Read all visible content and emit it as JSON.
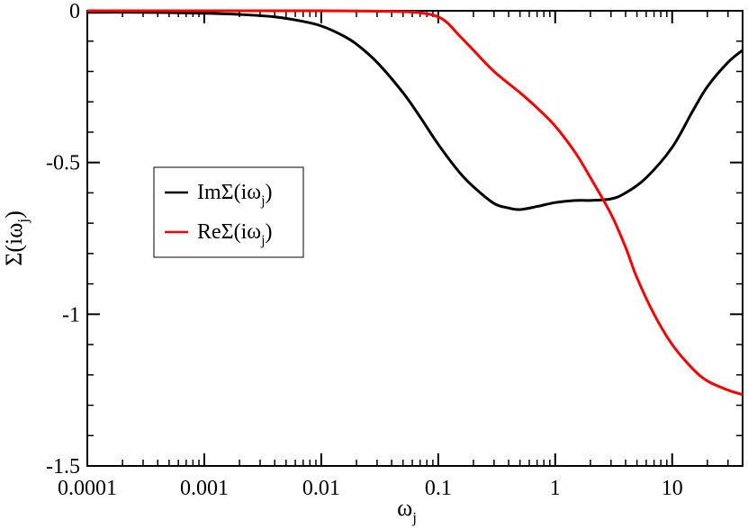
{
  "chart_data": {
    "type": "line",
    "title": "",
    "xlabel": "ω",
    "xlabel_sub": "j",
    "ylabel": "Σ(iω",
    "ylabel_sub": "j",
    "ylabel_tail": ")",
    "xscale": "log",
    "xlim": [
      0.0001,
      40
    ],
    "ylim": [
      -1.5,
      0
    ],
    "xticks": [
      {
        "value": 0.0001,
        "label": "0.0001"
      },
      {
        "value": 0.001,
        "label": "0.001"
      },
      {
        "value": 0.01,
        "label": "0.01"
      },
      {
        "value": 0.1,
        "label": "0.1"
      },
      {
        "value": 1,
        "label": "1"
      },
      {
        "value": 10,
        "label": "10"
      }
    ],
    "yticks": [
      {
        "value": 0,
        "label": "0"
      },
      {
        "value": -0.5,
        "label": "-0.5"
      },
      {
        "value": -1,
        "label": "-1"
      },
      {
        "value": -1.5,
        "label": "-1.5"
      }
    ],
    "grid": false,
    "legend_position": "middle-left",
    "series": [
      {
        "name": "ImΣ(iω",
        "name_sub": "j",
        "name_tail": ")",
        "color": "#000000",
        "x": [
          0.0001,
          0.0003,
          0.001,
          0.002,
          0.004,
          0.007,
          0.01,
          0.015,
          0.02,
          0.03,
          0.05,
          0.07,
          0.1,
          0.15,
          0.2,
          0.3,
          0.4,
          0.5,
          0.7,
          1,
          1.5,
          2,
          3,
          4,
          6,
          10,
          15,
          20,
          30,
          40
        ],
        "values": [
          -0.005,
          -0.005,
          -0.008,
          -0.012,
          -0.02,
          -0.035,
          -0.05,
          -0.08,
          -0.11,
          -0.17,
          -0.27,
          -0.35,
          -0.44,
          -0.53,
          -0.58,
          -0.635,
          -0.65,
          -0.655,
          -0.645,
          -0.632,
          -0.625,
          -0.625,
          -0.62,
          -0.6,
          -0.55,
          -0.45,
          -0.33,
          -0.25,
          -0.17,
          -0.13
        ]
      },
      {
        "name": "ReΣ(iω",
        "name_sub": "j",
        "name_tail": ")",
        "color": "#ff0000",
        "x": [
          0.0001,
          0.001,
          0.01,
          0.05,
          0.08,
          0.1,
          0.12,
          0.15,
          0.2,
          0.3,
          0.5,
          0.7,
          1,
          1.5,
          2,
          3,
          4,
          5,
          7,
          10,
          15,
          20,
          30,
          40
        ],
        "values": [
          0,
          0,
          0,
          -0.003,
          -0.01,
          -0.02,
          -0.04,
          -0.08,
          -0.13,
          -0.2,
          -0.27,
          -0.32,
          -0.38,
          -0.47,
          -0.55,
          -0.67,
          -0.78,
          -0.88,
          -1.0,
          -1.1,
          -1.18,
          -1.22,
          -1.25,
          -1.265
        ]
      }
    ]
  }
}
